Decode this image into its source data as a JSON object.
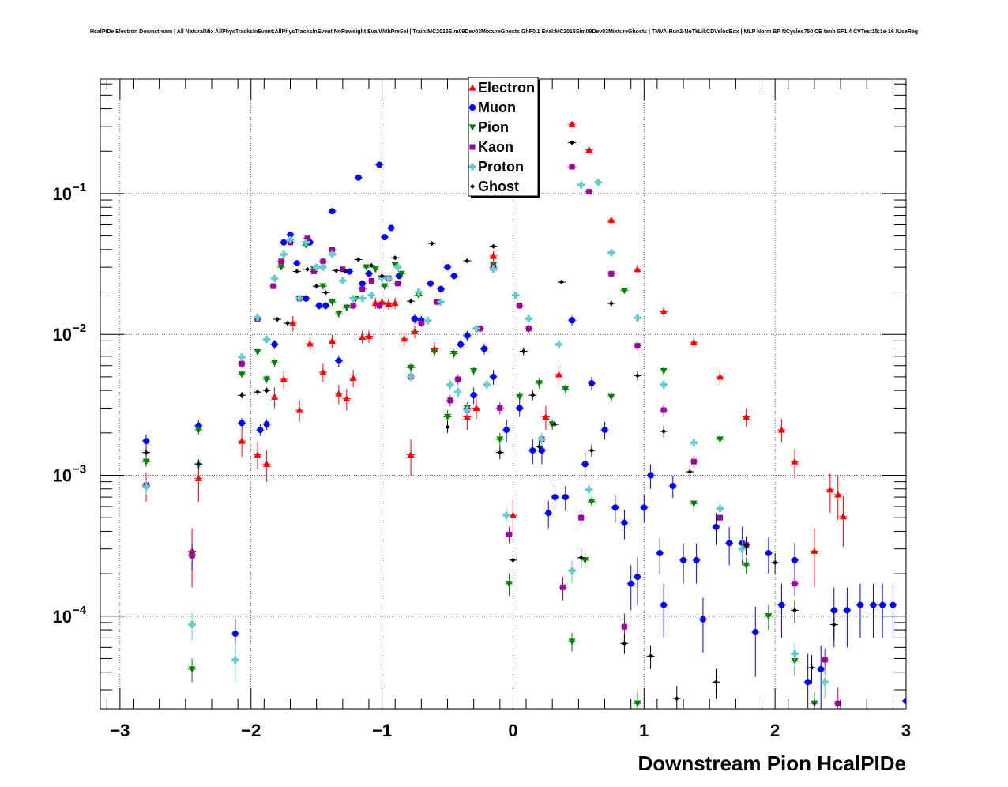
{
  "chart_data": {
    "type": "scatter",
    "title": "HcalPIDe Electron Downstream | All NaturalMix AllPhysTracksInEvent:AllPhysTracksInEvent NoReweight EvalWithPreSel | Train:MC2015Sim09Dev03MixtureGhosts GhF0.1 Eval:MC2015Sim09Dev03MixtureGhosts | TMVA-Run2-NoTkLikCDVelodEdx | MLP Norm BP NCycles750 CE tanh SF1.4 CVTest15:1e-16 !UseReg",
    "xlabel": "Downstream Pion HcalPIDe",
    "ylabel": "",
    "xlim": [
      -3.15,
      3.0
    ],
    "ylim": [
      2.2e-05,
      0.65
    ],
    "y_scale": "log",
    "x_ticks": [
      -3,
      -2,
      -1,
      0,
      1,
      2,
      3
    ],
    "x_tick_labels": [
      "−3",
      "−2",
      "−1",
      "0",
      "1",
      "2",
      "3"
    ],
    "y_ticks": [
      0.0001,
      0.001,
      0.01,
      0.1
    ],
    "y_tick_bases": [
      "10",
      "10",
      "10",
      "10"
    ],
    "y_tick_exps": [
      "−4",
      "−3",
      "−2",
      "−1"
    ],
    "grid": true,
    "legend_position": "top-center",
    "series": [
      {
        "name": "Electron",
        "color": "#ff0000",
        "marker": "triangle-up",
        "x": [
          -2.8,
          -2.45,
          -2.4,
          -2.07,
          -1.95,
          -1.88,
          -1.82,
          -1.75,
          -1.68,
          -1.63,
          -1.55,
          -1.45,
          -1.38,
          -1.33,
          -1.27,
          -1.22,
          -1.15,
          -1.1,
          -1.05,
          -1.0,
          -0.95,
          -0.9,
          -0.83,
          -0.78,
          -0.75,
          -0.6,
          -0.35,
          -0.28,
          -0.15,
          0.0,
          0.25,
          0.35,
          0.45,
          0.58,
          0.75,
          0.95,
          1.15,
          1.38,
          1.58,
          1.78,
          2.05,
          2.15,
          2.3,
          2.42,
          2.48,
          2.52
        ],
        "y": [
          0.00085,
          0.00029,
          0.00095,
          0.00175,
          0.0014,
          0.0012,
          0.0036,
          0.0048,
          0.012,
          0.0029,
          0.0086,
          0.0054,
          0.009,
          0.0038,
          0.0035,
          0.0049,
          0.0096,
          0.0097,
          0.0167,
          0.017,
          0.0165,
          0.0167,
          0.0093,
          0.0014,
          0.0105,
          0.0079,
          0.0026,
          0.003,
          0.036,
          0.00052,
          0.0026,
          0.0052,
          0.31,
          0.205,
          0.065,
          0.029,
          0.0145,
          0.0088,
          0.005,
          0.0026,
          0.0021,
          0.00125,
          0.00029,
          0.00079,
          0.00073,
          0.00051
        ],
        "err": [
          0.0002,
          0.00013,
          0.0003,
          0.0004,
          0.0003,
          0.0003,
          0.0006,
          0.0007,
          0.0015,
          0.0005,
          0.001,
          0.0008,
          0.001,
          0.0006,
          0.0006,
          0.0007,
          0.001,
          0.001,
          0.0015,
          0.0015,
          0.0015,
          0.0015,
          0.001,
          0.0004,
          0.0011,
          0.0009,
          0.0005,
          0.0005,
          0.003,
          0.00015,
          0.0005,
          0.0008,
          0.01,
          0.008,
          0.004,
          0.002,
          0.0012,
          0.0008,
          0.0006,
          0.0004,
          0.0004,
          0.0003,
          0.00013,
          0.00025,
          0.00025,
          0.0002
        ]
      },
      {
        "name": "Muon",
        "color": "#0000ff",
        "marker": "circle",
        "x": [
          -2.8,
          -2.45,
          -2.4,
          -2.12,
          -2.07,
          -1.93,
          -1.88,
          -1.82,
          -1.75,
          -1.7,
          -1.65,
          -1.58,
          -1.55,
          -1.48,
          -1.43,
          -1.38,
          -1.33,
          -1.25,
          -1.18,
          -1.15,
          -1.1,
          -1.02,
          -0.98,
          -0.93,
          -0.87,
          -0.75,
          -0.7,
          -0.63,
          -0.55,
          -0.5,
          -0.45,
          -0.4,
          -0.35,
          -0.3,
          -0.22,
          -0.15,
          -0.05,
          0.05,
          0.15,
          0.22,
          0.27,
          0.32,
          0.4,
          0.45,
          0.55,
          0.6,
          0.7,
          0.78,
          0.85,
          0.9,
          0.95,
          1.0,
          1.05,
          1.12,
          1.15,
          1.22,
          1.3,
          1.4,
          1.45,
          1.55,
          1.65,
          1.75,
          1.85,
          1.95,
          2.05,
          2.15,
          2.25,
          2.35,
          2.45,
          2.55,
          2.65,
          2.75,
          2.82,
          2.9,
          3.0
        ],
        "y": [
          0.00175,
          0.00027,
          0.00225,
          7.5e-05,
          0.00235,
          0.0021,
          0.0023,
          0.0085,
          0.045,
          0.051,
          0.032,
          0.018,
          0.045,
          0.016,
          0.016,
          0.075,
          0.0065,
          0.028,
          0.13,
          0.023,
          0.027,
          0.16,
          0.049,
          0.057,
          0.026,
          0.0129,
          0.0126,
          0.023,
          0.021,
          0.03,
          0.026,
          0.0085,
          0.0098,
          0.0037,
          0.0079,
          0.005,
          0.0021,
          0.003,
          0.0015,
          0.0015,
          0.00054,
          0.0007,
          0.0007,
          0.0126,
          0.0012,
          0.0045,
          0.0021,
          0.00059,
          0.00046,
          0.00017,
          0.00019,
          0.00059,
          0.001,
          0.00028,
          0.00012,
          0.00084,
          0.00025,
          0.00025,
          9.5e-05,
          0.00043,
          0.00033,
          0.00033,
          7.7e-05,
          0.00028,
          0.00012,
          0.00025,
          3.4e-05,
          4.2e-05,
          0.00011,
          0.00011,
          0.00012,
          0.00012,
          0.00012,
          0.00012,
          2.5e-05
        ],
        "err": [
          0.0002,
          6e-05,
          0.0002,
          2e-05,
          0.0002,
          0.0002,
          0.0002,
          0.0006,
          0.002,
          0.002,
          0.0015,
          0.001,
          0.002,
          0.001,
          0.001,
          0.002,
          0.0006,
          0.0015,
          0.004,
          0.0013,
          0.0015,
          0.004,
          0.002,
          0.002,
          0.0015,
          0.001,
          0.001,
          0.0013,
          0.0012,
          0.0015,
          0.0014,
          0.0007,
          0.0008,
          0.0005,
          0.0007,
          0.0006,
          0.0004,
          0.0004,
          0.0003,
          0.0003,
          0.00012,
          0.00014,
          0.00014,
          0.001,
          0.00025,
          0.0005,
          0.0003,
          0.00013,
          0.00011,
          6e-05,
          7e-05,
          0.00013,
          0.0002,
          8e-05,
          5e-05,
          0.00015,
          8e-05,
          8e-05,
          4e-05,
          0.00011,
          0.0001,
          0.0001,
          4e-05,
          8e-05,
          5e-05,
          8e-05,
          2e-05,
          2e-05,
          5e-05,
          5e-05,
          5e-05,
          5e-05,
          5e-05,
          5e-05,
          1.5e-05
        ]
      },
      {
        "name": "Pion",
        "color": "#008000",
        "marker": "triangle-down",
        "x": [
          -2.8,
          -2.45,
          -2.4,
          -2.07,
          -1.95,
          -1.88,
          -1.82,
          -1.77,
          -1.7,
          -1.63,
          -1.58,
          -1.52,
          -1.45,
          -1.38,
          -1.33,
          -1.27,
          -1.2,
          -1.12,
          -1.05,
          -0.98,
          -0.9,
          -0.85,
          -0.78,
          -0.72,
          -0.6,
          -0.5,
          -0.45,
          -0.35,
          -0.3,
          -0.15,
          -0.1,
          -0.03,
          0.05,
          0.2,
          0.3,
          0.4,
          0.45,
          0.55,
          0.6,
          0.75,
          0.85,
          0.95,
          1.15,
          1.38,
          1.58,
          1.78,
          1.95,
          2.15,
          2.3
        ],
        "y": [
          0.00125,
          4.2e-05,
          0.0021,
          0.0052,
          0.0075,
          0.0048,
          0.0063,
          0.03,
          0.045,
          0.018,
          0.043,
          0.029,
          0.022,
          0.017,
          0.014,
          0.0155,
          0.018,
          0.03,
          0.029,
          0.022,
          0.031,
          0.027,
          0.0058,
          0.019,
          0.0075,
          0.0026,
          0.0073,
          0.003,
          0.0055,
          0.031,
          0.0018,
          0.00017,
          0.0036,
          0.0045,
          0.0023,
          0.0041,
          6.6e-05,
          0.00025,
          0.00065,
          0.0036,
          0.0205,
          2.4e-05,
          0.0055,
          0.00063,
          0.0018,
          0.00023,
          0.0001,
          4.8e-05,
          2.4e-05
        ],
        "err": [
          0.0001,
          8e-06,
          0.00015,
          0.0003,
          0.0004,
          0.0003,
          0.0004,
          0.0013,
          0.0018,
          0.001,
          0.0018,
          0.0013,
          0.0011,
          0.001,
          0.0009,
          0.0009,
          0.001,
          0.0013,
          0.0013,
          0.0011,
          0.0013,
          0.0012,
          0.0005,
          0.001,
          0.0005,
          0.0003,
          0.0005,
          0.0003,
          0.0004,
          0.0013,
          0.0002,
          3e-05,
          0.0003,
          0.0004,
          0.0002,
          0.0003,
          1e-05,
          3e-05,
          5e-05,
          0.0003,
          0.001,
          5e-06,
          0.0004,
          5e-05,
          0.00015,
          3e-05,
          2e-05,
          1e-05,
          5e-06
        ]
      },
      {
        "name": "Kaon",
        "color": "#990099",
        "marker": "square",
        "x": [
          -2.8,
          -2.45,
          -2.07,
          -1.95,
          -1.83,
          -1.77,
          -1.7,
          -1.63,
          -1.57,
          -1.52,
          -1.45,
          -1.38,
          -1.3,
          -1.22,
          -1.15,
          -1.08,
          -1.02,
          -0.95,
          -0.88,
          -0.78,
          -0.7,
          -0.58,
          -0.48,
          -0.42,
          -0.35,
          -0.25,
          -0.15,
          -0.1,
          -0.03,
          0.05,
          0.12,
          0.22,
          0.38,
          0.45,
          0.52,
          0.58,
          0.75,
          0.85,
          0.95,
          1.15,
          1.38,
          1.58,
          1.78,
          2.15,
          2.38,
          2.48
        ],
        "y": [
          0.00085,
          0.00027,
          0.0062,
          0.0128,
          0.022,
          0.033,
          0.045,
          0.018,
          0.048,
          0.028,
          0.033,
          0.04,
          0.029,
          0.016,
          0.021,
          0.024,
          0.016,
          0.025,
          0.023,
          0.005,
          0.012,
          0.017,
          0.0034,
          0.0048,
          0.0029,
          0.011,
          0.03,
          0.003,
          0.00038,
          0.016,
          0.011,
          0.0018,
          0.00016,
          0.155,
          0.0005,
          0.103,
          0.027,
          8.4e-05,
          0.0083,
          0.0029,
          0.00125,
          0.0005,
          0.00032,
          0.00017,
          4.9e-05,
          2.4e-05
        ],
        "err": [
          0.0001,
          4e-05,
          0.0004,
          0.0006,
          0.001,
          0.0013,
          0.0018,
          0.001,
          0.0018,
          0.0013,
          0.0014,
          0.0015,
          0.0013,
          0.0009,
          0.001,
          0.0011,
          0.0009,
          0.0011,
          0.0011,
          0.0004,
          0.0007,
          0.0009,
          0.0003,
          0.0004,
          0.0003,
          0.0007,
          0.0013,
          0.0003,
          5e-05,
          0.0009,
          0.0007,
          0.0002,
          3e-05,
          0.005,
          6e-05,
          0.004,
          0.0013,
          2e-05,
          0.0006,
          0.0003,
          0.00012,
          6e-05,
          5e-05,
          3e-05,
          1e-05,
          7e-06
        ]
      },
      {
        "name": "Proton",
        "color": "#66cccc",
        "marker": "cross",
        "x": [
          -2.8,
          -2.45,
          -2.4,
          -2.12,
          -2.07,
          -1.95,
          -1.88,
          -1.82,
          -1.75,
          -1.7,
          -1.63,
          -1.58,
          -1.5,
          -1.45,
          -1.38,
          -1.3,
          -1.22,
          -1.15,
          -1.08,
          -1.0,
          -0.95,
          -0.88,
          -0.78,
          -0.72,
          -0.65,
          -0.55,
          -0.48,
          -0.42,
          -0.35,
          -0.28,
          -0.2,
          -0.15,
          -0.05,
          0.02,
          0.12,
          0.22,
          0.35,
          0.45,
          0.52,
          0.58,
          0.65,
          0.75,
          0.95,
          1.15,
          1.38,
          1.58,
          1.75,
          2.15,
          2.38
        ],
        "y": [
          0.00083,
          8.7e-05,
          0.0012,
          4.9e-05,
          0.0069,
          0.0132,
          0.0092,
          0.025,
          0.037,
          0.047,
          0.018,
          0.045,
          0.03,
          0.03,
          0.037,
          0.024,
          0.018,
          0.018,
          0.019,
          0.025,
          0.025,
          0.03,
          0.005,
          0.02,
          0.0125,
          0.017,
          0.0044,
          0.0039,
          0.0029,
          0.011,
          0.0044,
          0.029,
          0.00052,
          0.019,
          0.0129,
          0.0018,
          0.0085,
          0.00021,
          0.115,
          0.00079,
          0.12,
          0.038,
          0.0131,
          0.0044,
          0.0017,
          0.00058,
          0.0003,
          5.4e-05,
          3.4e-05
        ],
        "err": [
          0.0001,
          2e-05,
          0.0001,
          1.5e-05,
          0.0004,
          0.0006,
          0.0005,
          0.0011,
          0.0015,
          0.0018,
          0.001,
          0.0018,
          0.0013,
          0.0013,
          0.0015,
          0.0011,
          0.001,
          0.001,
          0.001,
          0.0011,
          0.0011,
          0.0013,
          0.0004,
          0.001,
          0.0008,
          0.001,
          0.0004,
          0.0004,
          0.0003,
          0.0007,
          0.0004,
          0.0013,
          6e-05,
          0.001,
          0.0008,
          0.0002,
          0.0006,
          4e-05,
          0.004,
          0.0001,
          0.004,
          0.0015,
          0.0008,
          0.0004,
          0.00015,
          8e-05,
          5e-05,
          1e-05,
          8e-06
        ]
      },
      {
        "name": "Ghost",
        "color": "#000000",
        "marker": "diamond",
        "x": [
          -2.8,
          -2.4,
          -2.07,
          -1.95,
          -1.88,
          -1.8,
          -1.72,
          -1.65,
          -1.57,
          -1.5,
          -1.43,
          -1.35,
          -1.28,
          -1.18,
          -1.08,
          -1.0,
          -0.9,
          -0.78,
          -0.62,
          -0.5,
          -0.35,
          -0.15,
          -0.1,
          0.0,
          0.08,
          0.15,
          0.2,
          0.32,
          0.37,
          0.45,
          0.52,
          0.6,
          0.75,
          0.85,
          0.95,
          1.05,
          1.15,
          1.25,
          1.35,
          1.55,
          1.78,
          2.0,
          2.15,
          2.28,
          2.45
        ],
        "y": [
          0.00145,
          0.0012,
          0.0037,
          0.0039,
          0.004,
          0.0128,
          0.012,
          0.028,
          0.029,
          0.022,
          0.0198,
          0.0284,
          0.028,
          0.034,
          0.0309,
          0.026,
          0.035,
          0.0172,
          0.0442,
          0.0022,
          0.0333,
          0.0422,
          0.00145,
          0.00025,
          0.0076,
          0.0037,
          0.0016,
          0.0023,
          0.0235,
          0.23,
          0.00026,
          0.0015,
          0.0166,
          6.4e-05,
          0.0051,
          5.2e-05,
          0.00205,
          2.6e-05,
          0.00106,
          3.4e-05,
          0.00032,
          0.00024,
          0.00011,
          4.3e-05,
          8.7e-05
        ],
        "err": [
          0.0001,
          0.0001,
          0.0002,
          0.0002,
          0.0002,
          0.0005,
          0.0005,
          0.001,
          0.001,
          0.0009,
          0.0008,
          0.001,
          0.001,
          0.0012,
          0.0011,
          0.001,
          0.0012,
          0.0008,
          0.0015,
          0.0002,
          0.0012,
          0.0015,
          0.00015,
          4e-05,
          0.0005,
          0.0003,
          0.00015,
          0.0002,
          0.0009,
          0.006,
          4e-05,
          0.00015,
          0.0008,
          1e-05,
          0.0004,
          1e-05,
          0.0002,
          6e-06,
          0.00012,
          8e-06,
          5e-05,
          4e-05,
          2e-05,
          1e-05,
          2e-05
        ]
      }
    ]
  }
}
